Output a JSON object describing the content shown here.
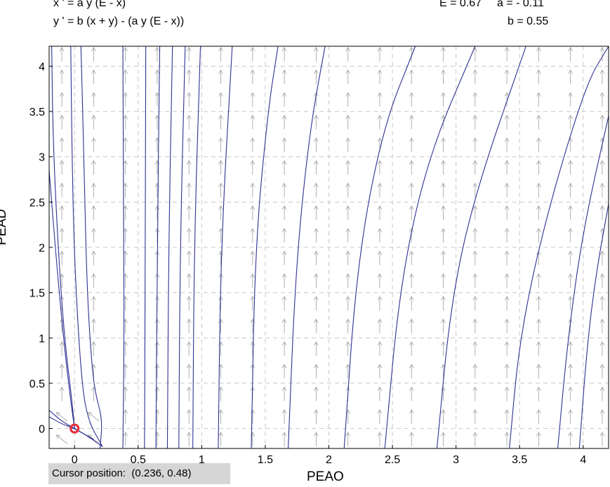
{
  "equations": {
    "x_prime": "x ' = a y (E - x)",
    "y_prime": "y ' = b (x + y) - (a y (E - x))"
  },
  "parameters": {
    "E": "E = 0.67",
    "a": "a = - 0.11",
    "b": "b = 0.55"
  },
  "cursor": {
    "label": "Cursor position:",
    "value": "(0.236, 0.48)"
  },
  "colors": {
    "trajectory": "#2e3192",
    "field": "#a8a8a8",
    "grid": "#c8c8c8",
    "marker": "#e8303c"
  },
  "chart_data": {
    "type": "line",
    "xlabel": "PEAO",
    "ylabel": "PEAD",
    "xlim": [
      -0.2,
      4.2
    ],
    "ylim": [
      -0.22,
      4.22
    ],
    "grid": true,
    "xticks": [
      0,
      0.5,
      1,
      1.5,
      2,
      2.5,
      3,
      3.5,
      4
    ],
    "yticks": [
      0,
      0.5,
      1,
      1.5,
      2,
      2.5,
      3,
      3.5,
      4
    ],
    "xtick_labels": [
      "0",
      "0.5",
      "1",
      "1.5",
      "2",
      "2.5",
      "3",
      "3.5",
      "4"
    ],
    "ytick_labels": [
      "0",
      "0.5",
      "1",
      "1.5",
      "2",
      "2.5",
      "3",
      "3.5",
      "4"
    ],
    "equilibrium": {
      "x": 0,
      "y": 0
    },
    "series": [
      {
        "points": [
          [
            -0.03,
            4.22
          ],
          [
            -0.02,
            3.0
          ],
          [
            0.0,
            1.8
          ],
          [
            0.05,
            0.6
          ],
          [
            0.1,
            0.1
          ],
          [
            0.22,
            -0.2
          ]
        ]
      },
      {
        "points": [
          [
            -0.18,
            4.22
          ],
          [
            -0.17,
            3.2
          ],
          [
            -0.13,
            2.0
          ],
          [
            -0.08,
            1.0
          ],
          [
            -0.02,
            0.3
          ],
          [
            0.0,
            0.0
          ]
        ]
      },
      {
        "points": [
          [
            -0.2,
            2.85
          ],
          [
            -0.14,
            1.8
          ],
          [
            -0.08,
            0.9
          ],
          [
            -0.03,
            0.3
          ],
          [
            0.0,
            0.0
          ]
        ]
      },
      {
        "points": [
          [
            -0.2,
            0.2
          ],
          [
            -0.1,
            0.08
          ],
          [
            0.0,
            0.0
          ],
          [
            0.1,
            -0.08
          ],
          [
            0.22,
            -0.2
          ]
        ]
      },
      {
        "points": [
          [
            -0.2,
            0.13
          ],
          [
            -0.1,
            0.05
          ],
          [
            0.0,
            0.0
          ],
          [
            0.15,
            -0.12
          ]
        ]
      },
      {
        "points": [
          [
            0.2,
            -0.22
          ],
          [
            0.22,
            0.1
          ],
          [
            0.16,
            0.4
          ],
          [
            0.13,
            0.8
          ],
          [
            0.1,
            1.5
          ],
          [
            0.08,
            2.5
          ],
          [
            0.07,
            3.2
          ],
          [
            0.05,
            4.22
          ]
        ]
      },
      {
        "points": [
          [
            0.38,
            -0.22
          ],
          [
            0.39,
            1.0
          ],
          [
            0.385,
            2.5
          ],
          [
            0.38,
            4.22
          ]
        ]
      },
      {
        "points": [
          [
            0.55,
            -0.22
          ],
          [
            0.555,
            1.5
          ],
          [
            0.56,
            4.22
          ]
        ]
      },
      {
        "points": [
          [
            0.64,
            -0.22
          ],
          [
            0.65,
            2.0
          ],
          [
            0.67,
            4.22
          ]
        ]
      },
      {
        "points": [
          [
            0.73,
            -0.22
          ],
          [
            0.74,
            2.0
          ],
          [
            0.77,
            4.22
          ]
        ]
      },
      {
        "points": [
          [
            0.82,
            -0.22
          ],
          [
            0.83,
            2.0
          ],
          [
            0.87,
            4.22
          ]
        ]
      },
      {
        "points": [
          [
            0.93,
            -0.22
          ],
          [
            0.94,
            2.0
          ],
          [
            0.99,
            4.22
          ]
        ]
      },
      {
        "points": [
          [
            1.13,
            -0.22
          ],
          [
            1.15,
            2.0
          ],
          [
            1.24,
            4.22
          ]
        ]
      },
      {
        "points": [
          [
            1.39,
            -0.22
          ],
          [
            1.42,
            2.0
          ],
          [
            1.52,
            3.5
          ],
          [
            1.6,
            4.22
          ]
        ]
      },
      {
        "points": [
          [
            1.68,
            -0.22
          ],
          [
            1.74,
            1.8
          ],
          [
            1.85,
            3.3
          ],
          [
            1.97,
            4.22
          ]
        ]
      },
      {
        "points": [
          [
            2.12,
            -0.22
          ],
          [
            2.22,
            1.8
          ],
          [
            2.42,
            3.3
          ],
          [
            2.68,
            4.22
          ]
        ]
      },
      {
        "points": [
          [
            2.44,
            -0.22
          ],
          [
            2.56,
            1.6
          ],
          [
            2.78,
            3.0
          ],
          [
            3.15,
            4.22
          ]
        ]
      },
      {
        "points": [
          [
            2.85,
            -0.22
          ],
          [
            2.96,
            1.4
          ],
          [
            3.15,
            2.6
          ],
          [
            3.55,
            4.22
          ]
        ]
      },
      {
        "points": [
          [
            3.42,
            -0.22
          ],
          [
            3.5,
            1.0
          ],
          [
            3.7,
            2.3
          ],
          [
            4.02,
            3.8
          ],
          [
            4.2,
            4.22
          ]
        ]
      },
      {
        "points": [
          [
            3.8,
            -0.22
          ],
          [
            3.88,
            1.0
          ],
          [
            4.0,
            2.2
          ],
          [
            4.2,
            3.45
          ]
        ]
      },
      {
        "points": [
          [
            3.97,
            -0.22
          ],
          [
            4.03,
            0.9
          ],
          [
            4.1,
            1.7
          ],
          [
            4.2,
            2.48
          ]
        ]
      }
    ]
  }
}
